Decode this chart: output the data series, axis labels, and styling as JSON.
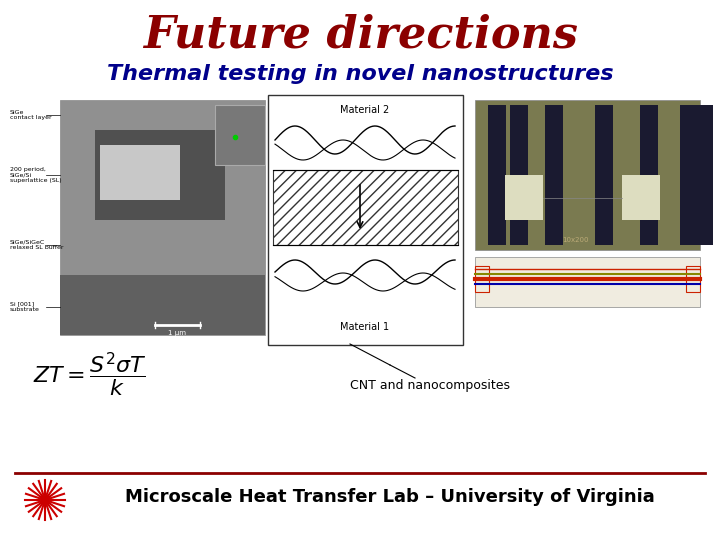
{
  "title": "Future directions",
  "title_color": "#8b0000",
  "title_fontsize": 32,
  "subtitle": "Thermal testing in novel nanostructures",
  "subtitle_color": "#00008B",
  "subtitle_fontsize": 16,
  "footer_text": "Microscale Heat Transfer Lab – University of Virginia",
  "footer_color": "#000000",
  "footer_fontsize": 13,
  "cnt_label": "CNT and nanocomposites",
  "cnt_label_fontsize": 9,
  "background_color": "#ffffff",
  "footer_line_color": "#8b0000",
  "laser_color": "#cc0000"
}
